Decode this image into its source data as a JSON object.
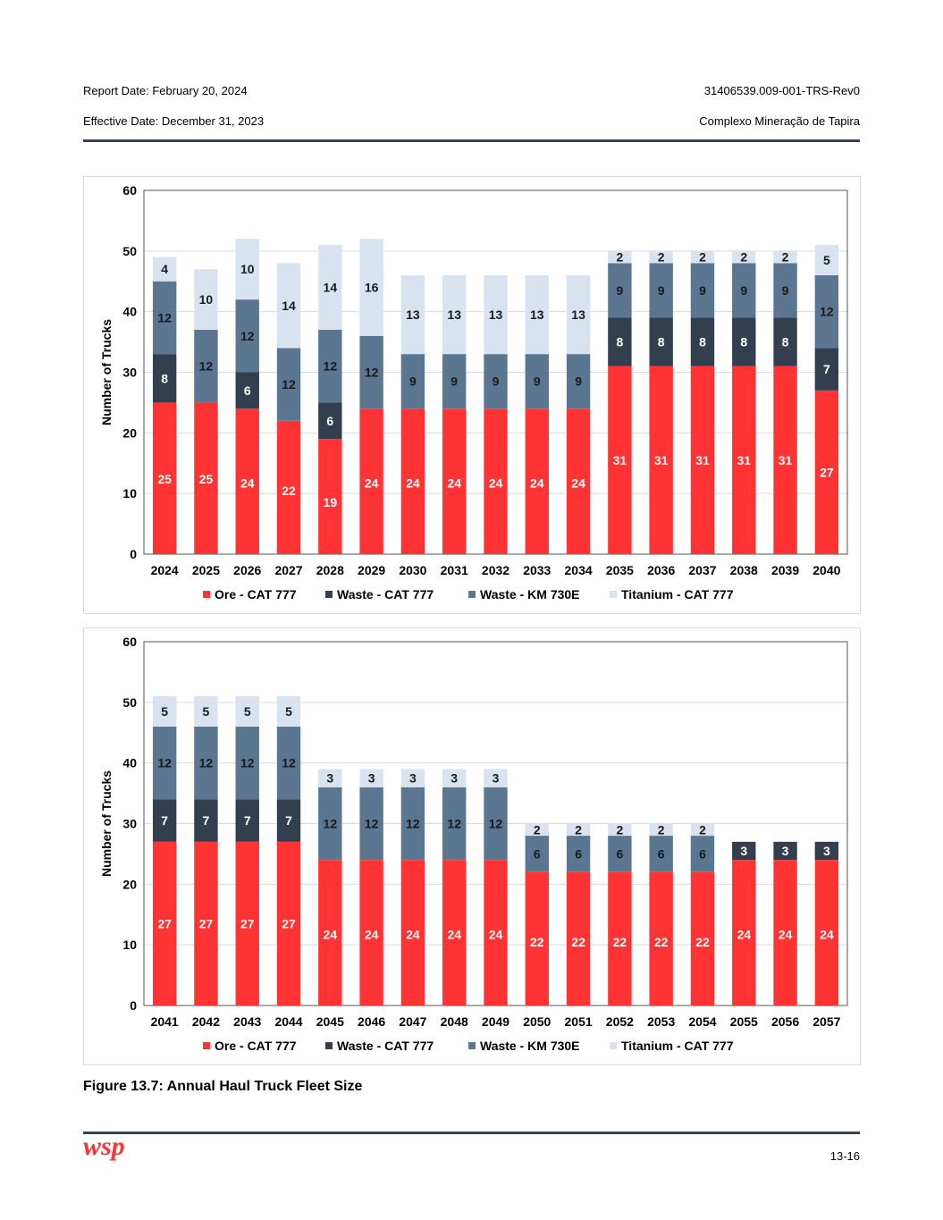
{
  "header": {
    "report_date": "Report Date: February 20, 2024",
    "effective_date": "Effective Date: December 31, 2023",
    "report_id": "31406539.009-001-TRS-Rev0",
    "project": "Complexo Mineração de Tapira"
  },
  "caption": "Figure 13.7: Annual Haul Truck Fleet Size",
  "footer": {
    "page_number": "13-16",
    "logo_text": "wsp"
  },
  "colors": {
    "ore": "#ff3333",
    "waste_cat": "#333f4f",
    "waste_km": "#5a7690",
    "titanium": "#d9e3ef",
    "accent": "#ff3333"
  },
  "chart_data": [
    {
      "type": "bar",
      "stacked": true,
      "title": "",
      "xlabel": "",
      "ylabel": "Number of Trucks",
      "ylim": [
        0,
        60
      ],
      "yticks": [
        0,
        10,
        20,
        30,
        40,
        50,
        60
      ],
      "grid": true,
      "legend_position": "bottom",
      "categories": [
        "2024",
        "2025",
        "2026",
        "2027",
        "2028",
        "2029",
        "2030",
        "2031",
        "2032",
        "2033",
        "2034",
        "2035",
        "2036",
        "2037",
        "2038",
        "2039",
        "2040"
      ],
      "series": [
        {
          "name": "Ore - CAT 777",
          "color": "#ff3333",
          "values": [
            25,
            25,
            24,
            22,
            19,
            24,
            24,
            24,
            24,
            24,
            24,
            31,
            31,
            31,
            31,
            31,
            27
          ]
        },
        {
          "name": "Waste - CAT 777",
          "color": "#333f4f",
          "values": [
            8,
            0,
            6,
            0,
            6,
            0,
            0,
            0,
            0,
            0,
            0,
            8,
            8,
            8,
            8,
            8,
            7
          ]
        },
        {
          "name": "Waste - KM 730E",
          "color": "#5a7690",
          "values": [
            12,
            12,
            12,
            12,
            12,
            12,
            9,
            9,
            9,
            9,
            9,
            9,
            9,
            9,
            9,
            9,
            12
          ]
        },
        {
          "name": "Titanium - CAT 777",
          "color": "#d9e3ef",
          "values": [
            4,
            10,
            10,
            14,
            14,
            16,
            13,
            13,
            13,
            13,
            13,
            2,
            2,
            2,
            2,
            2,
            5
          ]
        }
      ]
    },
    {
      "type": "bar",
      "stacked": true,
      "title": "",
      "xlabel": "",
      "ylabel": "Number of Trucks",
      "ylim": [
        0,
        60
      ],
      "yticks": [
        0,
        10,
        20,
        30,
        40,
        50,
        60
      ],
      "grid": true,
      "legend_position": "bottom",
      "categories": [
        "2041",
        "2042",
        "2043",
        "2044",
        "2045",
        "2046",
        "2047",
        "2048",
        "2049",
        "2050",
        "2051",
        "2052",
        "2053",
        "2054",
        "2055",
        "2056",
        "2057"
      ],
      "series": [
        {
          "name": "Ore - CAT 777",
          "color": "#ff3333",
          "values": [
            27,
            27,
            27,
            27,
            24,
            24,
            24,
            24,
            24,
            22,
            22,
            22,
            22,
            22,
            24,
            24,
            24
          ]
        },
        {
          "name": "Waste - CAT 777",
          "color": "#333f4f",
          "values": [
            7,
            7,
            7,
            7,
            0,
            0,
            0,
            0,
            0,
            0,
            0,
            0,
            0,
            0,
            3,
            3,
            3
          ]
        },
        {
          "name": "Waste - KM 730E",
          "color": "#5a7690",
          "values": [
            12,
            12,
            12,
            12,
            12,
            12,
            12,
            12,
            12,
            6,
            6,
            6,
            6,
            6,
            0,
            0,
            0
          ]
        },
        {
          "name": "Titanium - CAT 777",
          "color": "#d9e3ef",
          "values": [
            5,
            5,
            5,
            5,
            3,
            3,
            3,
            3,
            3,
            2,
            2,
            2,
            2,
            2,
            0,
            0,
            0
          ]
        }
      ]
    }
  ]
}
